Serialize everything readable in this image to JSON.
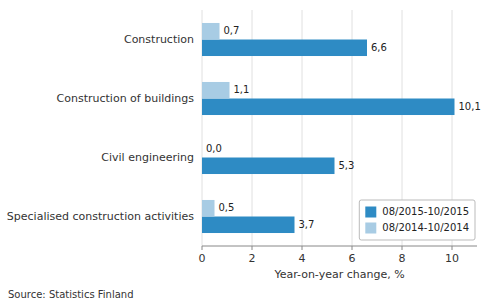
{
  "chart_data": {
    "type": "bar",
    "orientation": "horizontal",
    "categories": [
      "Construction",
      "Construction of buildings",
      "Civil engineering",
      "Specialised construction activities"
    ],
    "series": [
      {
        "name": "08/2015-10/2015",
        "color": "#2e8bc4",
        "values": [
          6.6,
          10.1,
          5.3,
          3.7
        ],
        "value_labels": [
          "6,6",
          "10,1",
          "5,3",
          "3,7"
        ]
      },
      {
        "name": "08/2014-10/2014",
        "color": "#a8cce4",
        "values": [
          0.7,
          1.1,
          0.0,
          0.5
        ],
        "value_labels": [
          "0,7",
          "1,1",
          "0,0",
          "0,5"
        ]
      }
    ],
    "x_label": "Year-on-year change, %",
    "xlim": [
      0,
      11
    ],
    "xticks": [
      0,
      2,
      4,
      6,
      8,
      10
    ],
    "grid": true,
    "legend": "lower right",
    "data_labels": true,
    "annotations": [
      "Source: Statistics Finland"
    ]
  }
}
